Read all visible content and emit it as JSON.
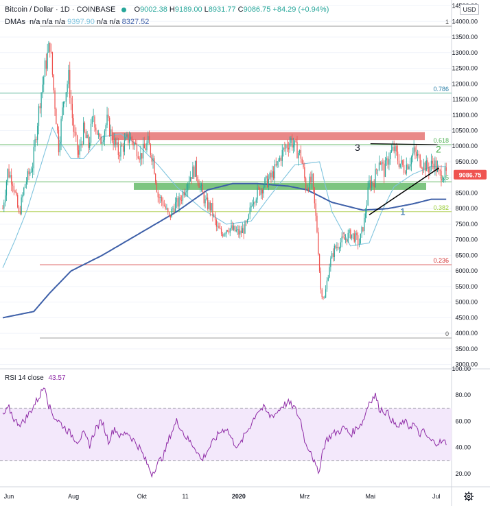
{
  "header": {
    "title": "Bitcoin / Dollar · 1D · COINBASE",
    "ohlc": {
      "o_label": "O",
      "o": "9002.38",
      "h_label": "H",
      "h": "9189.00",
      "l_label": "L",
      "l": "8931.77",
      "c_label": "C",
      "c": "9086.75",
      "change": "+84.29 (+0.94%)"
    },
    "dma": {
      "label": "DMAs",
      "values": [
        "n/a",
        "n/a",
        "n/a",
        "9397.90",
        "n/a",
        "n/a",
        "8327.52"
      ]
    }
  },
  "currency_button": "USD",
  "rsi_label": "RSI 14 close",
  "rsi_value": "43.57",
  "colors": {
    "up": "#26a69a",
    "down": "#ef5350",
    "blue": "#3d5fa8",
    "light_blue": "#7fc4de",
    "red_zone": "#e57373",
    "green_zone": "#66bb6a",
    "rsi_line": "#8e2aa6",
    "rsi_band": "#f3e8fb"
  },
  "chart_data": [
    {
      "type": "candlestick",
      "symbol": "Bitcoin / Dollar",
      "exchange": "COINBASE",
      "timeframe": "1D",
      "price_ticks": [
        "14500.00",
        "14000.00",
        "13500.00",
        "13000.00",
        "12500.00",
        "12000.00",
        "11500.00",
        "11000.00",
        "10500.00",
        "10000.00",
        "9500.00",
        "9000.00",
        "8500.00",
        "8000.00",
        "7500.00",
        "7000.00",
        "6500.00",
        "6000.00",
        "5500.00",
        "5000.00",
        "4500.00",
        "4000.00",
        "3500.00",
        "3000.00"
      ],
      "ylim": [
        2950,
        14600
      ],
      "date_ticks": [
        "Jun",
        "Aug",
        "Okt",
        "11",
        "2020",
        "Mrz",
        "Mai",
        "Jul"
      ],
      "last_price": "9086.75",
      "fib_levels": [
        {
          "label": "1",
          "value": 13850
        },
        {
          "label": "0.786",
          "value": 11700
        },
        {
          "label": "0.618",
          "value": 10050
        },
        {
          "label": "0.5",
          "value": 8860
        },
        {
          "label": "0.382",
          "value": 7900
        },
        {
          "label": "0.236",
          "value": 6200
        },
        {
          "label": "0",
          "value": 3850
        }
      ],
      "resistance_zone": [
        10200,
        10450
      ],
      "support_zone": [
        8600,
        8820
      ],
      "annotations": [
        "1",
        "2",
        "3"
      ],
      "candles_path": [
        [
          0,
          8000
        ],
        [
          4,
          9200
        ],
        [
          8,
          8900
        ],
        [
          13,
          7800
        ],
        [
          18,
          8800
        ],
        [
          24,
          9400
        ],
        [
          30,
          11500
        ],
        [
          34,
          12500
        ],
        [
          38,
          13300
        ],
        [
          41,
          11800
        ],
        [
          45,
          10000
        ],
        [
          49,
          11500
        ],
        [
          53,
          12200
        ],
        [
          57,
          10500
        ],
        [
          61,
          9700
        ],
        [
          65,
          10500
        ],
        [
          69,
          10000
        ],
        [
          73,
          11000
        ],
        [
          78,
          10100
        ],
        [
          84,
          10800
        ],
        [
          88,
          10300
        ],
        [
          93,
          9800
        ],
        [
          97,
          10000
        ],
        [
          102,
          10300
        ],
        [
          107,
          10000
        ],
        [
          111,
          9700
        ],
        [
          117,
          10100
        ],
        [
          121,
          9600
        ],
        [
          125,
          8400
        ],
        [
          129,
          8200
        ],
        [
          134,
          7700
        ],
        [
          138,
          8100
        ],
        [
          142,
          8200
        ],
        [
          146,
          8600
        ],
        [
          150,
          9000
        ],
        [
          155,
          9300
        ],
        [
          159,
          8700
        ],
        [
          163,
          8200
        ],
        [
          168,
          8000
        ],
        [
          172,
          7400
        ],
        [
          176,
          7200
        ],
        [
          181,
          7400
        ],
        [
          186,
          7300
        ],
        [
          191,
          7200
        ],
        [
          197,
          7500
        ],
        [
          201,
          8300
        ],
        [
          207,
          8600
        ],
        [
          211,
          8800
        ],
        [
          216,
          9000
        ],
        [
          220,
          9300
        ],
        [
          224,
          9700
        ],
        [
          228,
          10000
        ],
        [
          232,
          10200
        ],
        [
          236,
          9900
        ],
        [
          240,
          9700
        ],
        [
          244,
          8700
        ],
        [
          249,
          8900
        ],
        [
          253,
          7300
        ],
        [
          256,
          5400
        ],
        [
          259,
          5100
        ],
        [
          263,
          6200
        ],
        [
          267,
          6700
        ],
        [
          271,
          6900
        ],
        [
          275,
          7000
        ],
        [
          280,
          7200
        ],
        [
          283,
          7100
        ],
        [
          287,
          6900
        ],
        [
          291,
          7600
        ],
        [
          295,
          8800
        ],
        [
          299,
          8900
        ],
        [
          303,
          9600
        ],
        [
          307,
          9200
        ],
        [
          311,
          9700
        ],
        [
          315,
          9900
        ],
        [
          319,
          9500
        ],
        [
          323,
          9300
        ],
        [
          327,
          9500
        ],
        [
          331,
          9800
        ],
        [
          335,
          9600
        ],
        [
          339,
          9400
        ],
        [
          343,
          9300
        ],
        [
          347,
          9500
        ],
        [
          351,
          9100
        ]
      ],
      "ma_blue_path": [
        [
          0,
          4500
        ],
        [
          25,
          4700
        ],
        [
          38,
          5300
        ],
        [
          55,
          6000
        ],
        [
          80,
          6500
        ],
        [
          110,
          7200
        ],
        [
          140,
          7900
        ],
        [
          165,
          8600
        ],
        [
          185,
          8800
        ],
        [
          205,
          8800
        ],
        [
          230,
          8720
        ],
        [
          245,
          8600
        ],
        [
          265,
          8200
        ],
        [
          290,
          7950
        ],
        [
          310,
          8000
        ],
        [
          330,
          8150
        ],
        [
          345,
          8300
        ]
      ],
      "ma_light_path": [
        [
          0,
          6100
        ],
        [
          10,
          7000
        ],
        [
          20,
          8000
        ],
        [
          30,
          9300
        ],
        [
          40,
          10600
        ],
        [
          45,
          10200
        ],
        [
          55,
          9600
        ],
        [
          65,
          9600
        ],
        [
          80,
          10300
        ],
        [
          95,
          10400
        ],
        [
          110,
          10000
        ],
        [
          125,
          9400
        ],
        [
          140,
          8700
        ],
        [
          160,
          8000
        ],
        [
          180,
          7500
        ],
        [
          200,
          7600
        ],
        [
          215,
          8400
        ],
        [
          235,
          9400
        ],
        [
          255,
          9500
        ],
        [
          265,
          7900
        ],
        [
          280,
          6800
        ],
        [
          295,
          6900
        ],
        [
          305,
          7900
        ],
        [
          315,
          8700
        ],
        [
          330,
          9100
        ],
        [
          345,
          9350
        ]
      ]
    },
    {
      "type": "line",
      "name": "RSI 14 close",
      "last_value": "43.57",
      "ticks": [
        "100.00",
        "80.00",
        "60.00",
        "40.00",
        "20.00"
      ],
      "ylim": [
        10,
        100
      ],
      "band": [
        30,
        70
      ],
      "values_path": [
        [
          0,
          64
        ],
        [
          5,
          70
        ],
        [
          10,
          60
        ],
        [
          15,
          58
        ],
        [
          20,
          64
        ],
        [
          25,
          72
        ],
        [
          30,
          80
        ],
        [
          34,
          88
        ],
        [
          37,
          72
        ],
        [
          41,
          64
        ],
        [
          45,
          60
        ],
        [
          50,
          55
        ],
        [
          55,
          50
        ],
        [
          60,
          45
        ],
        [
          65,
          50
        ],
        [
          70,
          42
        ],
        [
          75,
          55
        ],
        [
          80,
          60
        ],
        [
          85,
          45
        ],
        [
          90,
          55
        ],
        [
          95,
          48
        ],
        [
          100,
          52
        ],
        [
          105,
          46
        ],
        [
          110,
          40
        ],
        [
          115,
          30
        ],
        [
          120,
          20
        ],
        [
          125,
          28
        ],
        [
          130,
          35
        ],
        [
          135,
          50
        ],
        [
          140,
          60
        ],
        [
          143,
          56
        ],
        [
          146,
          50
        ],
        [
          150,
          45
        ],
        [
          155,
          40
        ],
        [
          160,
          30
        ],
        [
          165,
          38
        ],
        [
          170,
          45
        ],
        [
          175,
          52
        ],
        [
          180,
          55
        ],
        [
          185,
          45
        ],
        [
          190,
          40
        ],
        [
          195,
          50
        ],
        [
          200,
          58
        ],
        [
          205,
          68
        ],
        [
          210,
          70
        ],
        [
          215,
          64
        ],
        [
          220,
          66
        ],
        [
          225,
          72
        ],
        [
          230,
          74
        ],
        [
          235,
          70
        ],
        [
          240,
          60
        ],
        [
          244,
          42
        ],
        [
          248,
          38
        ],
        [
          251,
          28
        ],
        [
          254,
          20
        ],
        [
          257,
          35
        ],
        [
          260,
          45
        ],
        [
          265,
          50
        ],
        [
          270,
          52
        ],
        [
          275,
          55
        ],
        [
          280,
          50
        ],
        [
          285,
          55
        ],
        [
          290,
          60
        ],
        [
          295,
          75
        ],
        [
          300,
          80
        ],
        [
          303,
          70
        ],
        [
          307,
          68
        ],
        [
          311,
          65
        ],
        [
          315,
          58
        ],
        [
          319,
          55
        ],
        [
          323,
          60
        ],
        [
          327,
          56
        ],
        [
          331,
          58
        ],
        [
          335,
          50
        ],
        [
          339,
          52
        ],
        [
          343,
          46
        ],
        [
          347,
          44
        ]
      ]
    }
  ]
}
